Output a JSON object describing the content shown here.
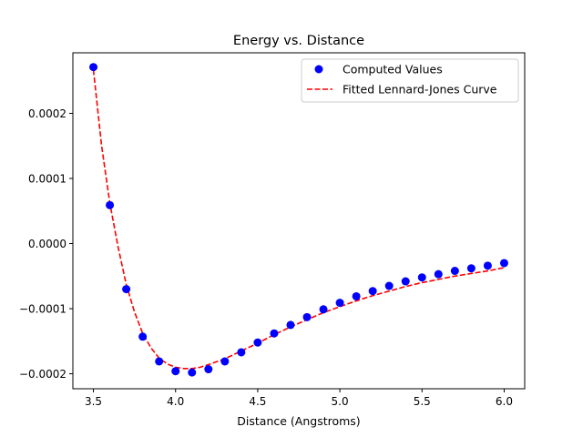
{
  "chart_data": {
    "type": "scatter",
    "title": "Energy vs. Distance",
    "xlabel": "Distance (Angstroms)",
    "ylabel": "",
    "xlim": [
      3.375,
      6.125
    ],
    "ylim": [
      -0.000223,
      0.000293
    ],
    "xticks": [
      3.5,
      4.0,
      4.5,
      5.0,
      5.5,
      6.0
    ],
    "xtick_labels": [
      "3.5",
      "4.0",
      "4.5",
      "5.0",
      "5.5",
      "6.0"
    ],
    "yticks": [
      -0.0002,
      -0.0001,
      0.0,
      0.0001,
      0.0002
    ],
    "ytick_labels": [
      "−0.0002",
      "−0.0001",
      "0.0000",
      "0.0001",
      "0.0002"
    ],
    "grid": false,
    "legend_position": "top-right",
    "series": [
      {
        "name": "Computed Values",
        "kind": "scatter",
        "color": "#0000ff",
        "x": [
          3.5,
          3.6,
          3.7,
          3.8,
          3.9,
          4.0,
          4.1,
          4.2,
          4.3,
          4.4,
          4.5,
          4.6,
          4.7,
          4.8,
          4.9,
          5.0,
          5.1,
          5.2,
          5.3,
          5.4,
          5.5,
          5.6,
          5.7,
          5.8,
          5.9,
          6.0
        ],
        "y": [
          0.000271,
          5.9e-05,
          -7e-05,
          -0.000143,
          -0.000181,
          -0.000196,
          -0.000198,
          -0.000193,
          -0.000181,
          -0.000167,
          -0.000152,
          -0.000138,
          -0.000125,
          -0.000113,
          -0.000101,
          -9.1e-05,
          -8.1e-05,
          -7.3e-05,
          -6.5e-05,
          -5.8e-05,
          -5.2e-05,
          -4.7e-05,
          -4.2e-05,
          -3.8e-05,
          -3.4e-05,
          -3e-05
        ]
      },
      {
        "name": "Fitted Lennard-Jones Curve",
        "kind": "line",
        "style": "dashed",
        "color": "#ff0000",
        "x": [
          3.5,
          3.55,
          3.6,
          3.65,
          3.7,
          3.75,
          3.8,
          3.85,
          3.9,
          3.95,
          4.0,
          4.05,
          4.1,
          4.15,
          4.2,
          4.3,
          4.4,
          4.5,
          4.6,
          4.7,
          4.8,
          4.9,
          5.0,
          5.1,
          5.2,
          5.3,
          5.4,
          5.5,
          5.6,
          5.7,
          5.8,
          5.9,
          6.0
        ],
        "y": [
          0.000267,
          0.00015,
          6.2e-05,
          -5e-06,
          -6.3e-05,
          -0.000105,
          -0.000138,
          -0.00016,
          -0.000176,
          -0.000185,
          -0.00019,
          -0.000192,
          -0.000192,
          -0.00019,
          -0.000186,
          -0.000177,
          -0.000165,
          -0.000153,
          -0.00014,
          -0.000128,
          -0.000117,
          -0.000106,
          -9.7e-05,
          -8.8e-05,
          -8e-05,
          -7.3e-05,
          -6.6e-05,
          -6e-05,
          -5.5e-05,
          -5e-05,
          -4.6e-05,
          -4.2e-05,
          -3.7e-05
        ]
      }
    ]
  }
}
